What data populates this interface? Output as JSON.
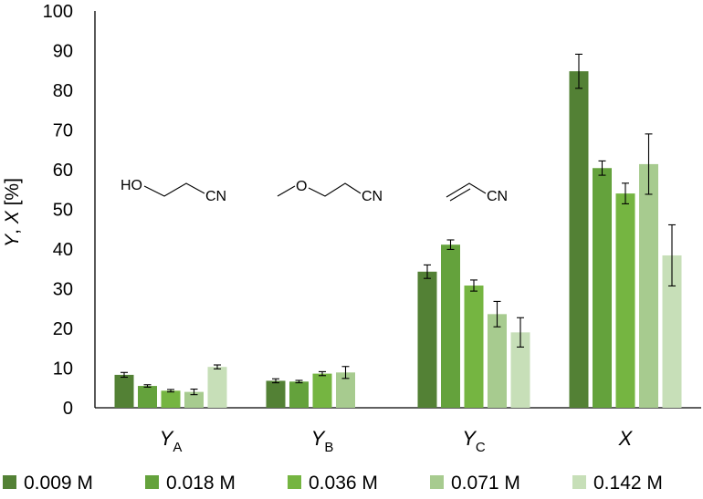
{
  "chart_data": {
    "type": "bar",
    "ylabel_parts": [
      "Y",
      ", ",
      "X",
      " [%]"
    ],
    "ylim": [
      0,
      100
    ],
    "yticks": [
      "0",
      "10",
      "20",
      "30",
      "40",
      "50",
      "60",
      "70",
      "80",
      "90",
      "100"
    ],
    "grid": false,
    "legend_position": "bottom",
    "categories": [
      {
        "main": "Y",
        "sub": "A"
      },
      {
        "main": "Y",
        "sub": "B"
      },
      {
        "main": "Y",
        "sub": "C"
      },
      {
        "main": "X",
        "sub": ""
      }
    ],
    "series": [
      {
        "name": "0.009 M",
        "color": "#538135",
        "values": [
          8.3,
          6.8,
          34.3,
          84.8
        ],
        "errors": [
          0.6,
          0.5,
          1.7,
          4.3
        ]
      },
      {
        "name": "0.018 M",
        "color": "#64a23c",
        "values": [
          5.5,
          6.6,
          41.1,
          60.4
        ],
        "errors": [
          0.3,
          0.3,
          1.2,
          1.8
        ]
      },
      {
        "name": "0.036 M",
        "color": "#75b541",
        "values": [
          4.3,
          8.6,
          30.8,
          54.0
        ],
        "errors": [
          0.3,
          0.5,
          1.4,
          2.6
        ]
      },
      {
        "name": "0.071 M",
        "color": "#a7cb8f",
        "values": [
          4.0,
          8.9,
          23.6,
          61.4
        ],
        "errors": [
          0.7,
          1.5,
          3.2,
          7.6
        ]
      },
      {
        "name": "0.142 M",
        "color": "#c7dfb8",
        "values": [
          10.3,
          null,
          19.0,
          38.4
        ],
        "errors": [
          0.5,
          null,
          3.7,
          7.7
        ]
      }
    ],
    "structure_labels": [
      "HO",
      "CN",
      "O",
      "CN",
      "CN"
    ]
  }
}
